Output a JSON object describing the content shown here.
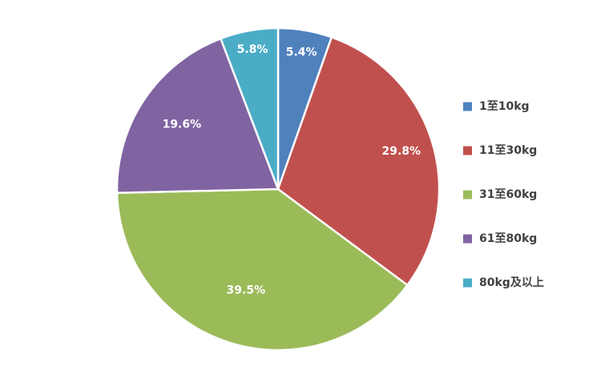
{
  "chart_data": {
    "type": "pie",
    "categories": [
      "1至10kg",
      "11至30kg",
      "31至60kg",
      "61至80kg",
      "80kg及以上"
    ],
    "values": [
      5.4,
      29.8,
      39.5,
      19.6,
      5.8
    ],
    "data_labels": [
      "5.4%",
      "29.8%",
      "39.5%",
      "19.6%",
      "5.8%"
    ],
    "colors": [
      "#4f81bd",
      "#c0504d",
      "#9bbb59",
      "#8064a2",
      "#4bacc6"
    ],
    "start_angle": "12 o'clock",
    "direction": "clockwise",
    "legend_position": "right"
  }
}
